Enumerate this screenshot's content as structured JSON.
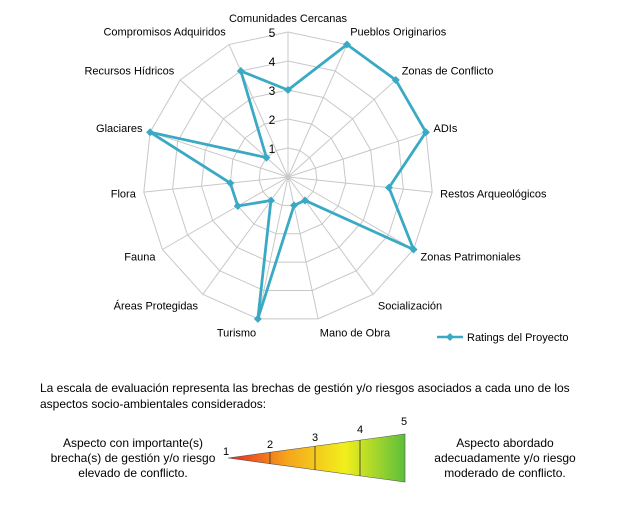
{
  "chart_data": {
    "type": "radar",
    "categories": [
      "Comunidades Cercanas",
      "Pueblos Originarios",
      "Zonas de Conflicto",
      "ADIs",
      "Restos Arqueológicos",
      "Zonas Patrimoniales",
      "Socialización",
      "Mano de Obra",
      "Turismo",
      "Áreas Protegidas",
      "Fauna",
      "Flora",
      "Glaciares",
      "Recursos Hídricos",
      "Compromisos Adquiridos"
    ],
    "series": [
      {
        "name": "Ratings del Proyecto",
        "color": "#3aaac4",
        "values": [
          3,
          5,
          5,
          5,
          3.5,
          5,
          1,
          1,
          5,
          1,
          2,
          2,
          5,
          1,
          4
        ]
      }
    ],
    "ylim": [
      0,
      5
    ],
    "ticks": [
      "1",
      "2",
      "3",
      "4",
      "5"
    ],
    "legend": "right",
    "grid": true
  },
  "footer": {
    "note": "La escala  de evaluación representa las brechas de gestión y/o riesgos asociados a cada uno de los aspectos socio-ambientales considerados:",
    "left_label": "Aspecto con importante(s) brecha(s) de gestión y/o riesgo elevado de conflicto.",
    "right_label": "Aspecto abordado adecuadamente y/o riesgo moderado de conflicto.",
    "scale_labels": [
      "1",
      "2",
      "3",
      "4",
      "5"
    ],
    "gradient_colors": [
      "#e8231f",
      "#f5a41c",
      "#f2ef1c",
      "#5bbf3a"
    ]
  }
}
